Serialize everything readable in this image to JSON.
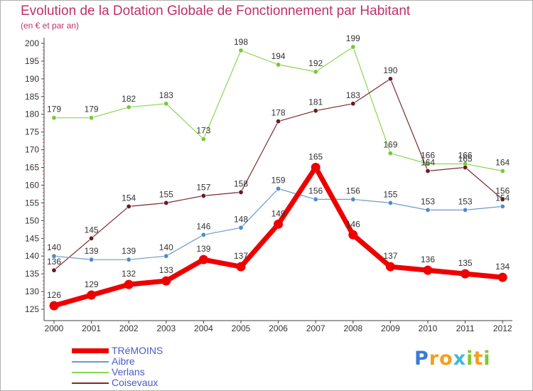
{
  "header": {
    "title": "Evolution de la Dotation Globale de Fonctionnement par Habitant",
    "subtitle": "(en € et par an)"
  },
  "chart_data": {
    "type": "line",
    "title": "Evolution de la Dotation Globale de Fonctionnement par Habitant",
    "subtitle": "(en € et par an)",
    "xlabel": "",
    "ylabel": "",
    "ylim": [
      125,
      200
    ],
    "yticks": [
      125,
      130,
      135,
      140,
      145,
      150,
      155,
      160,
      165,
      170,
      175,
      180,
      185,
      190,
      195,
      200
    ],
    "grid": false,
    "legend_position": "bottom-left",
    "categories": [
      "2000",
      "2001",
      "2002",
      "2003",
      "2004",
      "2005",
      "2006",
      "2007",
      "2008",
      "2009",
      "2010",
      "2011",
      "2012"
    ],
    "series": [
      {
        "name": "Verlans",
        "color": "#88d850",
        "marker_color": "#78c838",
        "line_width": 1.2,
        "values": [
          179,
          179,
          182,
          183,
          173,
          198,
          194,
          192,
          199,
          169,
          166,
          166,
          164
        ]
      },
      {
        "name": "Coisevaux",
        "color": "#7a2a30",
        "marker_color": "#6a1a20",
        "line_width": 1.2,
        "values": [
          136,
          145,
          154,
          155,
          157,
          158,
          178,
          181,
          183,
          190,
          164,
          165,
          156
        ]
      },
      {
        "name": "Aibre",
        "color": "#6b9ac8",
        "marker_color": "#4f8cc8",
        "line_width": 1.2,
        "values": [
          140,
          139,
          139,
          140,
          146,
          148,
          159,
          156,
          156,
          155,
          153,
          153,
          154
        ]
      },
      {
        "name": "TRéMOINS",
        "color": "#ee0000",
        "marker_color": "#ee0000",
        "line_width": 7,
        "values": [
          126,
          129,
          132,
          133,
          139,
          137,
          149,
          165,
          146,
          137,
          136,
          135,
          134
        ]
      }
    ]
  },
  "legend": {
    "items": [
      {
        "label": "TRéMOINS",
        "color": "#ee0000"
      },
      {
        "label": "Aibre",
        "color": "#6b9ac8"
      },
      {
        "label": "Verlans",
        "color": "#88d850"
      },
      {
        "label": "Coisevaux",
        "color": "#7a2a30"
      }
    ]
  },
  "logo": {
    "letters": [
      {
        "char": "P",
        "color": "#3a7ad8"
      },
      {
        "char": "r",
        "color": "#f0a020"
      },
      {
        "char": "o",
        "color": "#f0a020"
      },
      {
        "char": "x",
        "color": "#40b8e0"
      },
      {
        "char": "i",
        "color": "#80c830"
      },
      {
        "char": "t",
        "color": "#f0a020"
      },
      {
        "char": "i",
        "color": "#80c830"
      }
    ]
  }
}
